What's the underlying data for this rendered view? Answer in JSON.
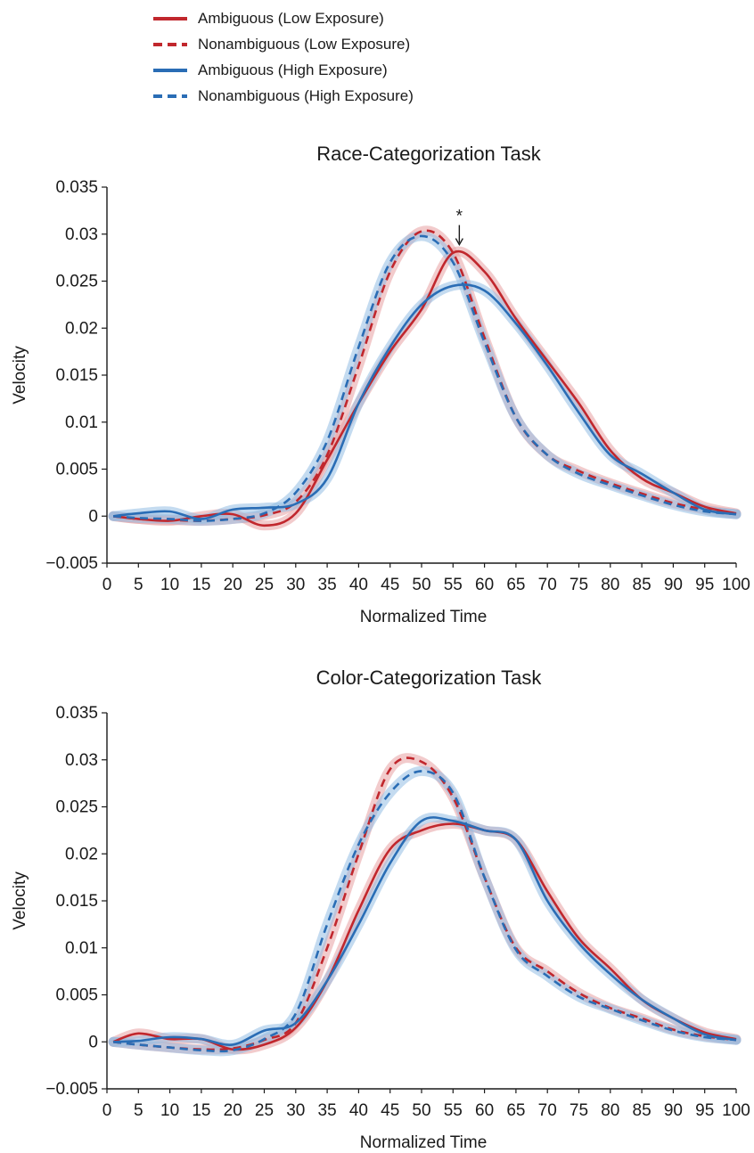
{
  "legend": [
    {
      "name": "Ambiguous (Low Exposure)",
      "color": "#c1272d",
      "dash": false
    },
    {
      "name": "Nonambiguous (Low Exposure)",
      "color": "#c1272d",
      "dash": true
    },
    {
      "name": "Ambiguous (High Exposure)",
      "color": "#2a6db5",
      "dash": false
    },
    {
      "name": "Nonambiguous (High Exposure)",
      "color": "#2a6db5",
      "dash": true
    }
  ],
  "colors": {
    "low": "#c1272d",
    "high": "#2a6db5",
    "low_band": "#e8a1a3",
    "high_band": "#93bde3"
  },
  "chart_data": [
    {
      "type": "line",
      "title": "Race-Categorization Task",
      "xlabel": "Normalized Time",
      "ylabel": "Velocity",
      "xlim": [
        0,
        100
      ],
      "ylim": [
        -0.005,
        0.035
      ],
      "xticks": [
        "0",
        "5",
        "10",
        "15",
        "20",
        "25",
        "30",
        "35",
        "40",
        "45",
        "50",
        "55",
        "60",
        "65",
        "70",
        "75",
        "80",
        "85",
        "90",
        "95",
        "100"
      ],
      "yticks": [
        "−0.005",
        "0",
        "0.005",
        "0.01",
        "0.015",
        "0.02",
        "0.025",
        "0.03",
        "0.035"
      ],
      "ytick_values": [
        -0.005,
        0,
        0.005,
        0.01,
        0.015,
        0.02,
        0.025,
        0.03,
        0.035
      ],
      "annotation": {
        "text": "*",
        "x": 56,
        "y": 0.0285
      },
      "x": [
        1,
        5,
        10,
        15,
        20,
        25,
        30,
        35,
        40,
        45,
        50,
        55,
        60,
        65,
        70,
        75,
        80,
        85,
        90,
        95,
        100
      ],
      "series": [
        {
          "name": "Ambiguous (Low Exposure)",
          "color": "#c1272d",
          "dash": false,
          "values": [
            0,
            -0.0003,
            -0.0005,
            0,
            0.0002,
            -0.001,
            0.0003,
            0.006,
            0.012,
            0.0175,
            0.022,
            0.028,
            0.026,
            0.021,
            0.0165,
            0.012,
            0.007,
            0.004,
            0.0025,
            0.001,
            0.0003
          ]
        },
        {
          "name": "Nonambiguous (Low Exposure)",
          "color": "#c1272d",
          "dash": true,
          "values": [
            0,
            -0.0003,
            -0.0004,
            -0.0005,
            -0.0003,
            0.0001,
            0.0015,
            0.0065,
            0.016,
            0.026,
            0.0303,
            0.028,
            0.019,
            0.0105,
            0.0065,
            0.0048,
            0.0035,
            0.0024,
            0.0014,
            0.0007,
            0.0002
          ]
        },
        {
          "name": "Ambiguous (High Exposure)",
          "color": "#2a6db5",
          "dash": false,
          "values": [
            0,
            0.0003,
            0.0005,
            -0.0003,
            0.0007,
            0.0009,
            0.0013,
            0.004,
            0.012,
            0.018,
            0.0225,
            0.0245,
            0.024,
            0.0205,
            0.016,
            0.011,
            0.0065,
            0.0045,
            0.0025,
            0.0007,
            0.0002
          ]
        },
        {
          "name": "Nonambiguous (High Exposure)",
          "color": "#2a6db5",
          "dash": true,
          "values": [
            0,
            -0.0002,
            -0.0003,
            -0.0005,
            -0.0003,
            0.0003,
            0.0025,
            0.008,
            0.018,
            0.027,
            0.0298,
            0.027,
            0.0185,
            0.0105,
            0.0065,
            0.0045,
            0.0033,
            0.0022,
            0.0012,
            0.0005,
            0.0002
          ]
        }
      ]
    },
    {
      "type": "line",
      "title": "Color-Categorization Task",
      "xlabel": "Normalized Time",
      "ylabel": "Velocity",
      "xlim": [
        0,
        100
      ],
      "ylim": [
        -0.005,
        0.035
      ],
      "xticks": [
        "0",
        "5",
        "10",
        "15",
        "20",
        "25",
        "30",
        "35",
        "40",
        "45",
        "50",
        "55",
        "60",
        "65",
        "70",
        "75",
        "80",
        "85",
        "90",
        "95",
        "100"
      ],
      "yticks": [
        "−0.005",
        "0",
        "0.005",
        "0.01",
        "0.015",
        "0.02",
        "0.025",
        "0.03",
        "0.035"
      ],
      "ytick_values": [
        -0.005,
        0,
        0.005,
        0.01,
        0.015,
        0.02,
        0.025,
        0.03,
        0.035
      ],
      "x": [
        1,
        5,
        10,
        15,
        20,
        25,
        30,
        35,
        40,
        45,
        50,
        55,
        60,
        65,
        70,
        75,
        80,
        85,
        90,
        95,
        100
      ],
      "series": [
        {
          "name": "Ambiguous (Low Exposure)",
          "color": "#c1272d",
          "dash": false,
          "values": [
            0,
            0.0009,
            0.0003,
            0.0003,
            -0.0008,
            -0.0003,
            0.0015,
            0.0065,
            0.014,
            0.0205,
            0.0225,
            0.0232,
            0.0225,
            0.0215,
            0.016,
            0.011,
            0.0078,
            0.0045,
            0.0025,
            0.001,
            0.0003
          ]
        },
        {
          "name": "Nonambiguous (Low Exposure)",
          "color": "#c1272d",
          "dash": true,
          "values": [
            0,
            -0.0003,
            -0.0006,
            -0.0008,
            -0.0007,
            0.0002,
            0.002,
            0.01,
            0.02,
            0.029,
            0.0298,
            0.026,
            0.0175,
            0.01,
            0.0075,
            0.0052,
            0.0036,
            0.0025,
            0.0013,
            0.0006,
            0.0002
          ]
        },
        {
          "name": "Ambiguous (High Exposure)",
          "color": "#2a6db5",
          "dash": false,
          "values": [
            0,
            0.0001,
            0.0005,
            0.0003,
            -0.0003,
            0.0012,
            0.002,
            0.0065,
            0.0125,
            0.019,
            0.0235,
            0.0235,
            0.0225,
            0.0215,
            0.015,
            0.0105,
            0.0072,
            0.0045,
            0.0025,
            0.0008,
            0.0002
          ]
        },
        {
          "name": "Nonambiguous (High Exposure)",
          "color": "#2a6db5",
          "dash": true,
          "values": [
            0,
            -0.0003,
            -0.0006,
            -0.0009,
            -0.0009,
            0.0003,
            0.003,
            0.0125,
            0.021,
            0.0265,
            0.0288,
            0.0265,
            0.0175,
            0.0098,
            0.007,
            0.0048,
            0.0035,
            0.0023,
            0.0012,
            0.0005,
            0.0002
          ]
        }
      ]
    }
  ]
}
